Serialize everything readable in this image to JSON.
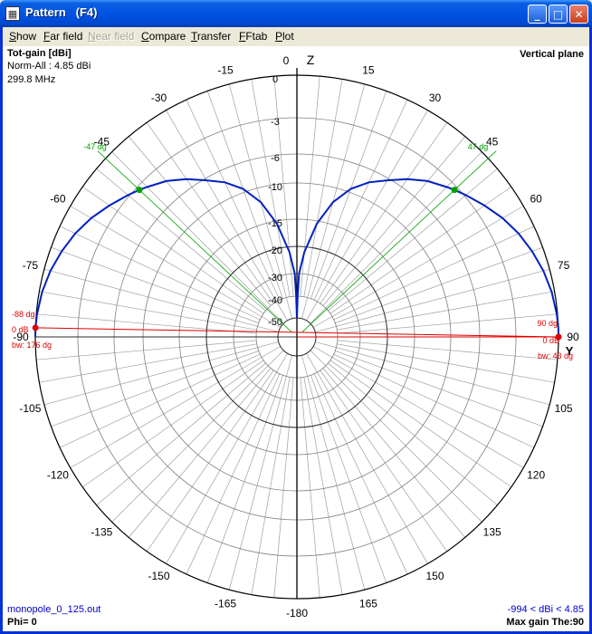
{
  "window": {
    "title": "Pattern   (F4)",
    "icon": "grid-icon"
  },
  "controls": {
    "minimize": "minimize-icon",
    "maximize": "maximize-icon",
    "close": "close-icon"
  },
  "menu": [
    {
      "label": "Show",
      "hotkey": "S",
      "rest": "how",
      "enabled": true
    },
    {
      "label": "Far field",
      "hotkey": "F",
      "rest": "ar field",
      "enabled": true
    },
    {
      "label": "Near field",
      "hotkey": "N",
      "rest": "ear field",
      "enabled": false
    },
    {
      "label": "Compare",
      "hotkey": "C",
      "rest": "ompare",
      "enabled": true
    },
    {
      "label": "Transfer",
      "hotkey": "T",
      "rest": "ransfer",
      "enabled": true
    },
    {
      "label": "FFtab",
      "hotkey": "F",
      "rest": "Ftab",
      "enabled": true
    },
    {
      "label": "Plot",
      "hotkey": "P",
      "rest": "lot",
      "enabled": true
    }
  ],
  "info": {
    "quantity": "Tot-gain [dBi]",
    "norm": "Norm-All : 4.85 dBi",
    "frequency": "299.8 MHz",
    "plane": "Vertical plane",
    "file": "monopole_0_125.out",
    "phi": "Phi= 0",
    "range": "-994 < dBi < 4.85",
    "max_gain": "Max gain The:90"
  },
  "axes": {
    "z": "Z",
    "y": "Y",
    "angle_labels": [
      "0",
      "15",
      "30",
      "45",
      "60",
      "75",
      "90",
      "105",
      "120",
      "135",
      "150",
      "165",
      "-180",
      "-165",
      "-150",
      "-135",
      "-120",
      "-105",
      "-90",
      "-75",
      "-60",
      "-45",
      "-30",
      "-15"
    ],
    "db_labels": [
      "0",
      "-3",
      "-6",
      "-10",
      "-15",
      "-20",
      "-30",
      "-40",
      "-50"
    ]
  },
  "markers": {
    "left_outer": "-88 dg",
    "left_level": "0 dB",
    "left_bw": "bw: 176 dg",
    "right_outer": "90 dg",
    "right_level": "0 dB",
    "right_bw": "bw: 43 dg",
    "left_mid": "-47 dg",
    "right_mid": "47 dg"
  },
  "chart_data": {
    "type": "polar",
    "plane": "vertical",
    "angle_unit": "deg",
    "gain_unit": "dBi",
    "r_scale_db": [
      0,
      -3,
      -6,
      -10,
      -15,
      -20,
      -30,
      -40,
      -50
    ],
    "series": [
      {
        "theta": [
          0,
          1,
          2,
          5,
          10,
          15,
          20,
          25,
          30,
          35,
          40,
          45,
          47,
          50,
          55,
          60,
          65,
          70,
          75,
          80,
          85,
          88,
          90
        ],
        "gain_db": [
          -50,
          -40,
          -30,
          -22,
          -15.5,
          -12,
          -9.5,
          -7.7,
          -6.3,
          -5.2,
          -4.3,
          -3.6,
          -3.3,
          -2.9,
          -2.3,
          -1.7,
          -1.2,
          -0.8,
          -0.45,
          -0.2,
          -0.05,
          0,
          0
        ]
      }
    ],
    "markers": [
      {
        "theta": -88,
        "gain_db": 0
      },
      {
        "theta": 90,
        "gain_db": 0
      },
      {
        "theta": -47,
        "gain_db": -3.3
      },
      {
        "theta": 47,
        "gain_db": -3.3
      }
    ],
    "colors": {
      "pattern": "#0020c0",
      "marker_green": "#00a000",
      "marker_red": "#e00000",
      "grid": "#a0a0a0"
    }
  }
}
